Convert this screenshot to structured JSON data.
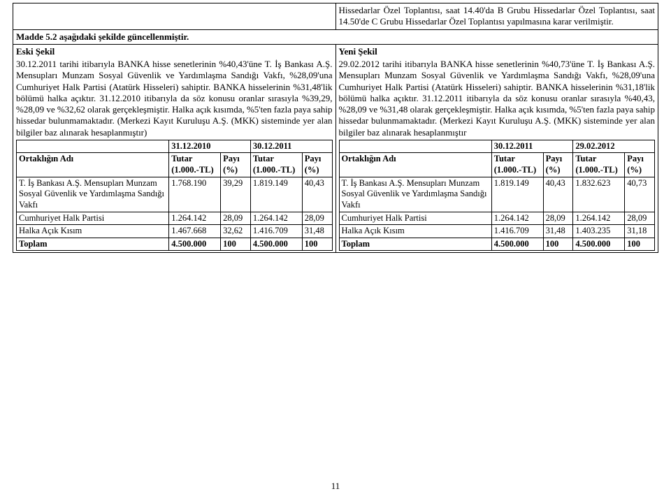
{
  "top_block": "Hissedarlar Özel Toplantısı, saat 14.40'da B Grubu Hissedarlar Özel Toplantısı, saat 14.50'de C Grubu Hissedarlar Özel Toplantısı yapılmasına karar verilmiştir.",
  "madde": "Madde 5.2 aşağıdaki şekilde güncellenmiştir.",
  "left": {
    "heading": "Eski Şekil",
    "body": "30.12.2011 tarihi itibarıyla BANKA hisse senetlerinin %40,43'üne T. İş Bankası A.Ş. Mensupları Munzam Sosyal Güvenlik ve Yardımlaşma Sandığı Vakfı, %28,09'una Cumhuriyet Halk Partisi (Atatürk Hisseleri) sahiptir. BANKA hisselerinin %31,48'lik bölümü halka açıktır. 31.12.2010 itibarıyla da söz konusu oranlar sırasıyla %39,29, %28,09 ve %32,62 olarak gerçekleşmiştir. Halka açık kısımda, %5'ten fazla paya sahip hissedar bulunmamaktadır. (Merkezi Kayıt Kuruluşu A.Ş. (MKK) sisteminde yer alan bilgiler baz alınarak hesaplanmıştır)",
    "dates": [
      "31.12.2010",
      "30.12.2011"
    ],
    "colhdr": {
      "ort": "Ortaklığın Adı",
      "tutar": "Tutar (1.000.-TL)",
      "payi": "Payı (%)"
    },
    "rows": [
      {
        "name": "T. İş Bankası A.Ş. Mensupları Munzam Sosyal Güvenlik ve Yardımlaşma Sandığı Vakfı",
        "t1": "1.768.190",
        "p1": "39,29",
        "t2": "1.819.149",
        "p2": "40,43"
      },
      {
        "name": "Cumhuriyet Halk Partisi",
        "t1": "1.264.142",
        "p1": "28,09",
        "t2": "1.264.142",
        "p2": "28,09"
      },
      {
        "name": "Halka Açık Kısım",
        "t1": "1.467.668",
        "p1": "32,62",
        "t2": "1.416.709",
        "p2": "31,48"
      },
      {
        "name": "Toplam",
        "t1": "4.500.000",
        "p1": "100",
        "t2": "4.500.000",
        "p2": "100"
      }
    ]
  },
  "right": {
    "heading": "Yeni Şekil",
    "body": "29.02.2012 tarihi itibarıyla BANKA hisse senetlerinin %40,73'üne T. İş Bankası A.Ş. Mensupları Munzam Sosyal Güvenlik ve Yardımlaşma Sandığı Vakfı, %28,09'una Cumhuriyet Halk Partisi (Atatürk Hisseleri) sahiptir. BANKA hisselerinin %31,18'lik bölümü halka açıktır. 31.12.2011 itibarıyla da söz konusu oranlar sırasıyla %40,43, %28,09 ve %31,48 olarak gerçekleşmiştir. Halka açık kısımda, %5'ten fazla paya sahip hissedar bulunmamaktadır. (Merkezi Kayıt Kuruluşu A.Ş. (MKK) sisteminde yer alan bilgiler baz alınarak hesaplanmıştır",
    "dates": [
      "30.12.2011",
      "29.02.2012"
    ],
    "colhdr": {
      "ort": "Ortaklığın Adı",
      "tutar": "Tutar (1.000.-TL)",
      "payi": "Payı (%)"
    },
    "rows": [
      {
        "name": "T. İş Bankası A.Ş. Mensupları Munzam Sosyal Güvenlik ve Yardımlaşma Sandığı Vakfı",
        "t1": "1.819.149",
        "p1": "40,43",
        "t2": "1.832.623",
        "p2": "40,73"
      },
      {
        "name": "Cumhuriyet Halk Partisi",
        "t1": "1.264.142",
        "p1": "28,09",
        "t2": "1.264.142",
        "p2": "28,09"
      },
      {
        "name": "Halka Açık Kısım",
        "t1": "1.416.709",
        "p1": "31,48",
        "t2": "1.403.235",
        "p2": "31,18"
      },
      {
        "name": "Toplam",
        "t1": "4.500.000",
        "p1": "100",
        "t2": "4.500.000",
        "p2": "100"
      }
    ]
  },
  "pagenum": "11"
}
